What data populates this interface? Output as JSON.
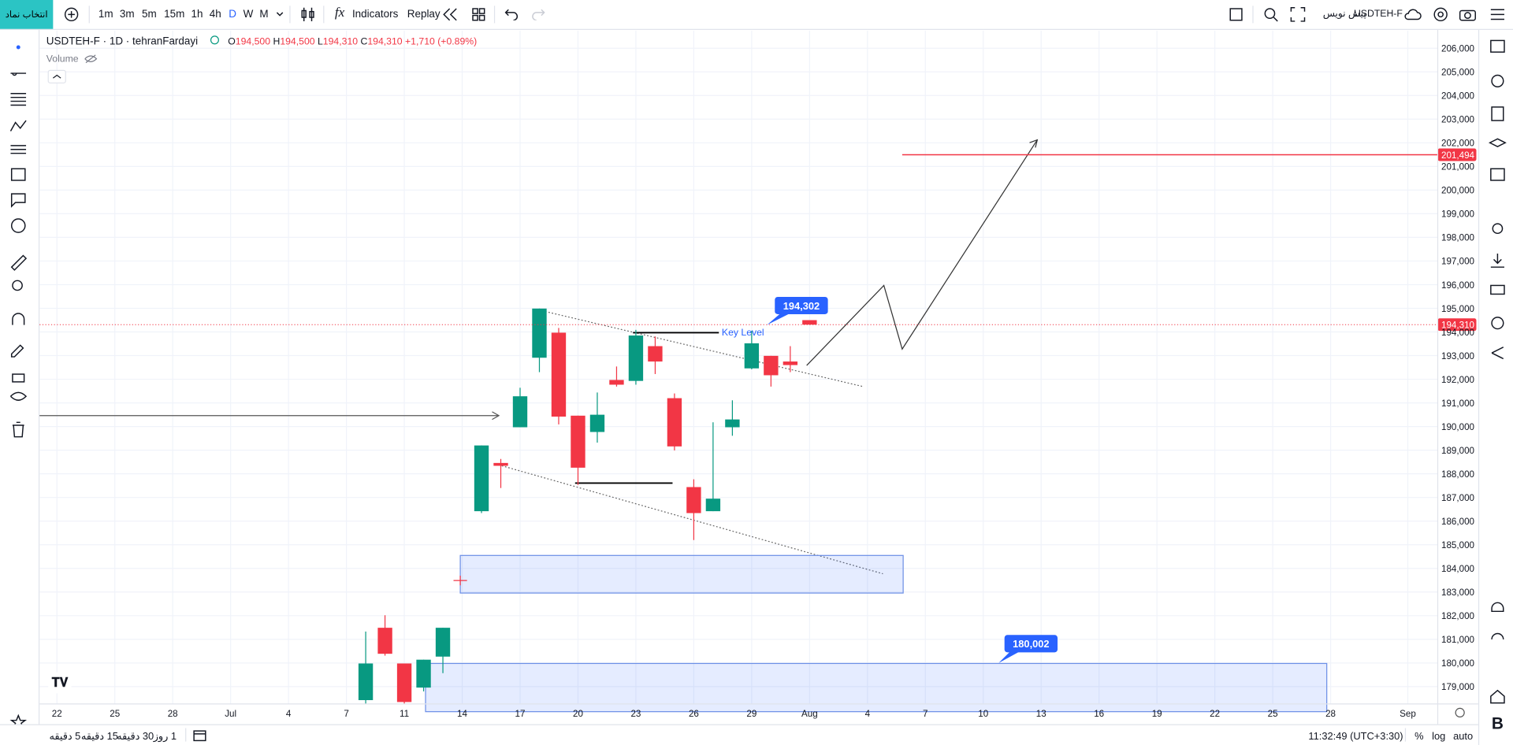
{
  "toolbar": {
    "symbol_button": "انتخاب نماد",
    "intervals": [
      "1m",
      "3m",
      "5m",
      "15m",
      "1h",
      "4h",
      "D",
      "W",
      "M"
    ],
    "indicators": "Indicators",
    "replay": "Replay",
    "symbol": "USDTEH-F",
    "draft": "پیش نویس"
  },
  "legend": {
    "title": "USDTEH-F · 1D · tehranFardayi",
    "ohlc": [
      {
        "key": "O",
        "value": "194,500"
      },
      {
        "key": "H",
        "value": "194,500"
      },
      {
        "key": "L",
        "value": "194,310"
      },
      {
        "key": "C",
        "value": "194,310"
      }
    ],
    "change": "+1,710 (+0.89%)",
    "volume": "Volume"
  },
  "chart_data": {
    "type": "candlestick",
    "key_level": "Key Level",
    "up_color": "#089981",
    "down_color": "#f23645",
    "x": [
      16,
      17,
      18,
      19,
      20,
      22,
      23,
      24,
      25,
      26,
      27,
      28,
      29,
      30,
      31,
      32,
      33,
      34,
      35,
      36,
      37,
      38,
      39
    ],
    "open": [
      178430,
      181490,
      179980,
      178960,
      180270,
      186420,
      188460,
      189970,
      192910,
      193970,
      190460,
      189770,
      191970,
      191930,
      193400,
      191200,
      187440,
      186420,
      189970,
      192460,
      192990,
      192750,
      194500
    ],
    "high": [
      181330,
      182020,
      179980,
      180140,
      181490,
      189200,
      188630,
      191640,
      194990,
      194170,
      190460,
      191440,
      192540,
      194090,
      193810,
      191400,
      187770,
      190180,
      191110,
      194050,
      192990,
      193400,
      194500
    ],
    "low": [
      178270,
      180310,
      178270,
      178800,
      179570,
      186340,
      187400,
      189970,
      192300,
      190090,
      187530,
      189320,
      191690,
      191770,
      192220,
      188990,
      185200,
      186420,
      189610,
      192420,
      191690,
      192300,
      194310
    ],
    "close": [
      179980,
      180390,
      178350,
      180140,
      181490,
      189200,
      188340,
      191280,
      194990,
      190420,
      188260,
      190500,
      191770,
      193850,
      192750,
      189160,
      186340,
      186950,
      190300,
      193520,
      192170,
      192600,
      194310
    ],
    "xlim": [
      -0.9,
      71.55
    ],
    "xticks": [
      {
        "value": 0,
        "label": "22"
      },
      {
        "value": 3,
        "label": "25"
      },
      {
        "value": 6,
        "label": "28"
      },
      {
        "value": 9,
        "label": "Jul"
      },
      {
        "value": 12,
        "label": "4"
      },
      {
        "value": 15,
        "label": "7"
      },
      {
        "value": 18,
        "label": "11"
      },
      {
        "value": 21,
        "label": "14"
      },
      {
        "value": 24,
        "label": "17"
      },
      {
        "value": 27,
        "label": "20"
      },
      {
        "value": 30,
        "label": "23"
      },
      {
        "value": 33,
        "label": "26"
      },
      {
        "value": 36,
        "label": "29"
      },
      {
        "value": 39,
        "label": "Aug"
      },
      {
        "value": 42,
        "label": "4"
      },
      {
        "value": 45,
        "label": "7"
      },
      {
        "value": 48,
        "label": "10"
      },
      {
        "value": 51,
        "label": "13"
      },
      {
        "value": 54,
        "label": "16"
      },
      {
        "value": 57,
        "label": "19"
      },
      {
        "value": 60,
        "label": "22"
      },
      {
        "value": 63,
        "label": "25"
      },
      {
        "value": 66,
        "label": "28"
      },
      {
        "value": 70,
        "label": "Sep"
      }
    ],
    "ylim": [
      178268,
      206734
    ],
    "yticks": [
      {
        "value": 179000,
        "label": "179,000"
      },
      {
        "value": 180000,
        "label": "180,000"
      },
      {
        "value": 181000,
        "label": "181,000"
      },
      {
        "value": 182000,
        "label": "182,000"
      },
      {
        "value": 183000,
        "label": "183,000"
      },
      {
        "value": 184000,
        "label": "184,000"
      },
      {
        "value": 185000,
        "label": "185,000"
      },
      {
        "value": 186000,
        "label": "186,000"
      },
      {
        "value": 187000,
        "label": "187,000"
      },
      {
        "value": 188000,
        "label": "188,000"
      },
      {
        "value": 189000,
        "label": "189,000"
      },
      {
        "value": 190000,
        "label": "190,000"
      },
      {
        "value": 191000,
        "label": "191,000"
      },
      {
        "value": 192000,
        "label": "192,000"
      },
      {
        "value": 193000,
        "label": "193,000"
      },
      {
        "value": 194000,
        "label": "194,000"
      },
      {
        "value": 195000,
        "label": "195,000"
      },
      {
        "value": 196000,
        "label": "196,000"
      },
      {
        "value": 197000,
        "label": "197,000"
      },
      {
        "value": 198000,
        "label": "198,000"
      },
      {
        "value": 199000,
        "label": "199,000"
      },
      {
        "value": 200000,
        "label": "200,000"
      },
      {
        "value": 201000,
        "label": "201,000"
      },
      {
        "value": 202000,
        "label": "202,000"
      },
      {
        "value": 203000,
        "label": "203,000"
      },
      {
        "value": 204000,
        "label": "204,000"
      },
      {
        "value": 205000,
        "label": "205,000"
      },
      {
        "value": 206000,
        "label": "206,000"
      }
    ],
    "grid": true,
    "target_line": {
      "value": 201494,
      "label": "201,494",
      "color": "#f23645"
    },
    "last_price": {
      "value": 194310,
      "label": "194,310",
      "color": "#f23645"
    },
    "callouts": [
      {
        "value": 194302,
        "label": "194,302",
        "color": "#2962ff"
      },
      {
        "value": 180002,
        "label": "180,002",
        "color": "#2962ff"
      }
    ]
  },
  "bottom_bar": {
    "ranges": [
      "5 دقیقه",
      "15 دقیقه",
      "30 دقیقه",
      "1 روز"
    ],
    "clock": "11:32:49 (UTC+3:30)",
    "percent": "%",
    "log": "log",
    "auto": "auto"
  },
  "sidebar": {
    "logo": "B"
  }
}
